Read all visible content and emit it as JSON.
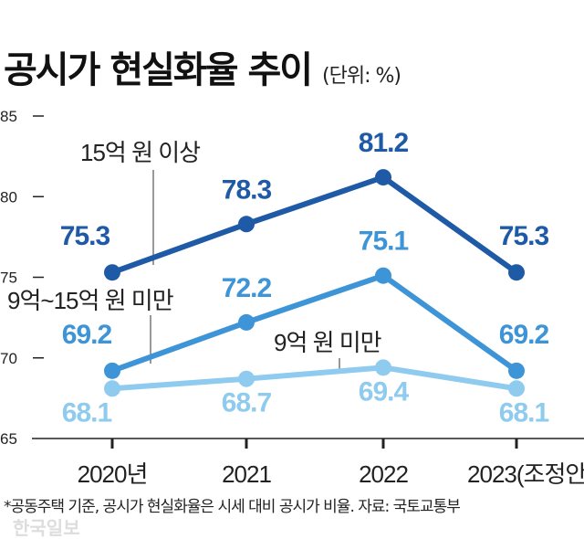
{
  "title": "공시가 현실화율 추이",
  "unit": "(단위: %)",
  "note": "*공동주택 기준, 공시가 현실화율은 시세 대비 공시가 비율. 자료: 국토교통부",
  "watermark": "한국일보",
  "chart_data": {
    "type": "line",
    "categories": [
      "2020년",
      "2021",
      "2022",
      "2023(조정안)"
    ],
    "yticks": [
      65,
      70,
      75,
      80,
      85
    ],
    "ylim": [
      65,
      85
    ],
    "grid": false,
    "series": [
      {
        "name": "15억 원 이상",
        "values": [
          75.3,
          78.3,
          81.2,
          75.3
        ],
        "color": "#1f5aa6"
      },
      {
        "name": "9억~15억 원 미만",
        "values": [
          69.2,
          72.2,
          75.1,
          69.2
        ],
        "color": "#3d94d6"
      },
      {
        "name": "9억 원 미만",
        "values": [
          68.1,
          68.7,
          69.4,
          68.1
        ],
        "color": "#8fcbee"
      }
    ]
  }
}
